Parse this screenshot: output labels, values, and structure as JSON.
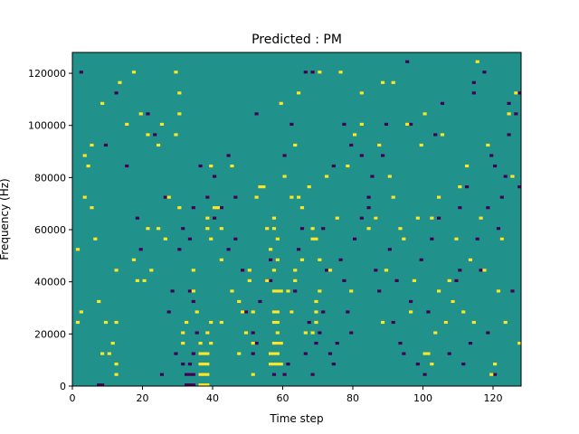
{
  "chart_data": {
    "type": "heatmap",
    "title": "Predicted : PM",
    "xlabel": "Time step",
    "ylabel": "Frequency (Hz)",
    "xlim": [
      0,
      128
    ],
    "ylim": [
      0,
      128000
    ],
    "xticks": [
      0,
      20,
      40,
      60,
      80,
      100,
      120
    ],
    "yticks": [
      0,
      20000,
      40000,
      60000,
      80000,
      100000,
      120000
    ],
    "ytick_labels": [
      "0",
      "20000",
      "40000",
      "60000",
      "80000",
      "100000",
      "120000"
    ],
    "n_time_steps": 128,
    "n_freq_bins": 128,
    "colormap": "viridis",
    "colors": {
      "background": "#21918c",
      "low": "#440154",
      "high": "#fde725"
    },
    "cells": {
      "high": [
        [
          36,
          0
        ],
        [
          36,
          4
        ],
        [
          36,
          8
        ],
        [
          37,
          0
        ],
        [
          37,
          4
        ],
        [
          37,
          8
        ],
        [
          38,
          0
        ],
        [
          38,
          4
        ],
        [
          38,
          8
        ],
        [
          37,
          12
        ],
        [
          38,
          12
        ],
        [
          39,
          16
        ],
        [
          38,
          20
        ],
        [
          39,
          24
        ],
        [
          36,
          12
        ],
        [
          36,
          16
        ],
        [
          57,
          8
        ],
        [
          57,
          12
        ],
        [
          57,
          16
        ],
        [
          58,
          8
        ],
        [
          58,
          12
        ],
        [
          58,
          16
        ],
        [
          58,
          20
        ],
        [
          56,
          8
        ],
        [
          56,
          12
        ],
        [
          59,
          8
        ],
        [
          59,
          16
        ],
        [
          58,
          24
        ],
        [
          57,
          24
        ],
        [
          57,
          36
        ],
        [
          58,
          36
        ],
        [
          59,
          36
        ],
        [
          57,
          44
        ],
        [
          58,
          56
        ],
        [
          56,
          52
        ],
        [
          57,
          60
        ],
        [
          57,
          64
        ],
        [
          58,
          48
        ],
        [
          57,
          28
        ],
        [
          58,
          28
        ],
        [
          55,
          40
        ],
        [
          69,
          24
        ],
        [
          69,
          28
        ],
        [
          69,
          32
        ],
        [
          68,
          20
        ],
        [
          50,
          40
        ],
        [
          50,
          44
        ],
        [
          49,
          20
        ],
        [
          45,
          36
        ],
        [
          47,
          32
        ],
        [
          51,
          28
        ],
        [
          51,
          16
        ],
        [
          47,
          12
        ],
        [
          51,
          4
        ],
        [
          53,
          76
        ],
        [
          54,
          76
        ],
        [
          61,
          36
        ],
        [
          62,
          28
        ],
        [
          63,
          40
        ],
        [
          63,
          44
        ],
        [
          64,
          72
        ],
        [
          66,
          20
        ],
        [
          68,
          56
        ],
        [
          68,
          60
        ],
        [
          70,
          48
        ],
        [
          70,
          36
        ],
        [
          34,
          36
        ],
        [
          34,
          44
        ],
        [
          35,
          28
        ],
        [
          31,
          20
        ],
        [
          32,
          24
        ],
        [
          42,
          48
        ],
        [
          42,
          24
        ],
        [
          48,
          28
        ],
        [
          41,
          68
        ],
        [
          38,
          64
        ],
        [
          38,
          60
        ],
        [
          39,
          56
        ],
        [
          30,
          68
        ],
        [
          31,
          16
        ],
        [
          26,
          56
        ],
        [
          27,
          72
        ],
        [
          24,
          60
        ],
        [
          22,
          44
        ],
        [
          20,
          40
        ],
        [
          21,
          60
        ],
        [
          18,
          40
        ],
        [
          17,
          48
        ],
        [
          12,
          44
        ],
        [
          12,
          24
        ],
        [
          11,
          16
        ],
        [
          10,
          12
        ],
        [
          12,
          4
        ],
        [
          12,
          8
        ],
        [
          9,
          24
        ],
        [
          8,
          12
        ],
        [
          7,
          32
        ],
        [
          6,
          56
        ],
        [
          5,
          68
        ],
        [
          4,
          84
        ],
        [
          3,
          72
        ],
        [
          2,
          28
        ],
        [
          1,
          52
        ],
        [
          1,
          24
        ],
        [
          3,
          88
        ],
        [
          5,
          92
        ],
        [
          8,
          108
        ],
        [
          13,
          116
        ],
        [
          15,
          100
        ],
        [
          17,
          120
        ],
        [
          19,
          104
        ],
        [
          21,
          96
        ],
        [
          24,
          92
        ],
        [
          25,
          100
        ],
        [
          29,
          96
        ],
        [
          29,
          120
        ],
        [
          30,
          104
        ],
        [
          30,
          112
        ],
        [
          39,
          84
        ],
        [
          40,
          68
        ],
        [
          42,
          60
        ],
        [
          45,
          84
        ],
        [
          52,
          72
        ],
        [
          55,
          60
        ],
        [
          59,
          108
        ],
        [
          60,
          80
        ],
        [
          62,
          72
        ],
        [
          63,
          92
        ],
        [
          64,
          112
        ],
        [
          65,
          68
        ],
        [
          65,
          48
        ],
        [
          67,
          76
        ],
        [
          69,
          56
        ],
        [
          70,
          120
        ],
        [
          72,
          80
        ],
        [
          73,
          44
        ],
        [
          75,
          64
        ],
        [
          76,
          120
        ],
        [
          78,
          84
        ],
        [
          79,
          36
        ],
        [
          80,
          96
        ],
        [
          82,
          100
        ],
        [
          82,
          112
        ],
        [
          84,
          60
        ],
        [
          86,
          64
        ],
        [
          87,
          92
        ],
        [
          88,
          24
        ],
        [
          89,
          44
        ],
        [
          90,
          80
        ],
        [
          91,
          72
        ],
        [
          94,
          56
        ],
        [
          95,
          100
        ],
        [
          96,
          28
        ],
        [
          97,
          40
        ],
        [
          98,
          64
        ],
        [
          99,
          92
        ],
        [
          100,
          104
        ],
        [
          101,
          12
        ],
        [
          102,
          8
        ],
        [
          103,
          20
        ],
        [
          104,
          72
        ],
        [
          105,
          96
        ],
        [
          107,
          40
        ],
        [
          108,
          32
        ],
        [
          109,
          56
        ],
        [
          110,
          76
        ],
        [
          112,
          84
        ],
        [
          113,
          48
        ],
        [
          114,
          24
        ],
        [
          115,
          124
        ],
        [
          116,
          64
        ],
        [
          117,
          44
        ],
        [
          118,
          92
        ],
        [
          119,
          4
        ],
        [
          120,
          8
        ],
        [
          121,
          36
        ],
        [
          122,
          56
        ],
        [
          124,
          104
        ],
        [
          125,
          80
        ],
        [
          126,
          112
        ],
        [
          127,
          16
        ],
        [
          100,
          12
        ],
        [
          102,
          64
        ],
        [
          111,
          28
        ],
        [
          88,
          116
        ],
        [
          91,
          116
        ],
        [
          104,
          36
        ],
        [
          106,
          24
        ],
        [
          93,
          60
        ],
        [
          123,
          24
        ]
      ],
      "low": [
        [
          32,
          0
        ],
        [
          33,
          0
        ],
        [
          34,
          0
        ],
        [
          32,
          4
        ],
        [
          33,
          4
        ],
        [
          34,
          4
        ],
        [
          33,
          8
        ],
        [
          7,
          0
        ],
        [
          8,
          0
        ],
        [
          25,
          4
        ],
        [
          31,
          8
        ],
        [
          33,
          36
        ],
        [
          34,
          32
        ],
        [
          35,
          20
        ],
        [
          34,
          12
        ],
        [
          27,
          28
        ],
        [
          30,
          52
        ],
        [
          31,
          60
        ],
        [
          33,
          56
        ],
        [
          34,
          68
        ],
        [
          36,
          84
        ],
        [
          38,
          72
        ],
        [
          40,
          80
        ],
        [
          42,
          68
        ],
        [
          44,
          52
        ],
        [
          46,
          56
        ],
        [
          48,
          44
        ],
        [
          49,
          28
        ],
        [
          51,
          12
        ],
        [
          51,
          20
        ],
        [
          52,
          16
        ],
        [
          53,
          32
        ],
        [
          55,
          40
        ],
        [
          56,
          48
        ],
        [
          57,
          4
        ],
        [
          58,
          16
        ],
        [
          60,
          4
        ],
        [
          61,
          8
        ],
        [
          62,
          28
        ],
        [
          63,
          36
        ],
        [
          64,
          52
        ],
        [
          65,
          60
        ],
        [
          66,
          12
        ],
        [
          67,
          24
        ],
        [
          68,
          4
        ],
        [
          69,
          16
        ],
        [
          70,
          20
        ],
        [
          71,
          28
        ],
        [
          72,
          44
        ],
        [
          73,
          12
        ],
        [
          74,
          8
        ],
        [
          75,
          16
        ],
        [
          76,
          48
        ],
        [
          77,
          40
        ],
        [
          78,
          28
        ],
        [
          79,
          20
        ],
        [
          80,
          56
        ],
        [
          82,
          64
        ],
        [
          84,
          68
        ],
        [
          85,
          80
        ],
        [
          86,
          44
        ],
        [
          87,
          36
        ],
        [
          88,
          88
        ],
        [
          89,
          100
        ],
        [
          90,
          52
        ],
        [
          91,
          24
        ],
        [
          92,
          40
        ],
        [
          93,
          16
        ],
        [
          94,
          12
        ],
        [
          95,
          124
        ],
        [
          96,
          32
        ],
        [
          98,
          8
        ],
        [
          99,
          48
        ],
        [
          100,
          4
        ],
        [
          101,
          28
        ],
        [
          102,
          56
        ],
        [
          104,
          64
        ],
        [
          106,
          24
        ],
        [
          107,
          12
        ],
        [
          108,
          32
        ],
        [
          109,
          40
        ],
        [
          110,
          68
        ],
        [
          111,
          8
        ],
        [
          112,
          76
        ],
        [
          113,
          16
        ],
        [
          114,
          116
        ],
        [
          115,
          56
        ],
        [
          116,
          44
        ],
        [
          117,
          120
        ],
        [
          118,
          20
        ],
        [
          119,
          88
        ],
        [
          120,
          4
        ],
        [
          121,
          60
        ],
        [
          122,
          72
        ],
        [
          124,
          96
        ],
        [
          125,
          36
        ],
        [
          126,
          104
        ],
        [
          127,
          76
        ],
        [
          127,
          112
        ],
        [
          2,
          120
        ],
        [
          9,
          92
        ],
        [
          12,
          112
        ],
        [
          15,
          84
        ],
        [
          18,
          64
        ],
        [
          19,
          52
        ],
        [
          21,
          104
        ],
        [
          23,
          96
        ],
        [
          26,
          72
        ],
        [
          28,
          36
        ],
        [
          29,
          12
        ],
        [
          40,
          64
        ],
        [
          44,
          88
        ],
        [
          46,
          72
        ],
        [
          52,
          104
        ],
        [
          56,
          40
        ],
        [
          60,
          88
        ],
        [
          62,
          100
        ],
        [
          66,
          120
        ],
        [
          68,
          120
        ],
        [
          71,
          60
        ],
        [
          74,
          84
        ],
        [
          77,
          100
        ],
        [
          79,
          92
        ],
        [
          82,
          88
        ],
        [
          84,
          72
        ],
        [
          86,
          64
        ],
        [
          96,
          100
        ],
        [
          103,
          96
        ],
        [
          105,
          108
        ],
        [
          110,
          44
        ],
        [
          114,
          112
        ],
        [
          118,
          68
        ],
        [
          120,
          84
        ],
        [
          122,
          56
        ],
        [
          123,
          80
        ],
        [
          124,
          108
        ]
      ]
    },
    "grid": false,
    "legend": "none"
  }
}
